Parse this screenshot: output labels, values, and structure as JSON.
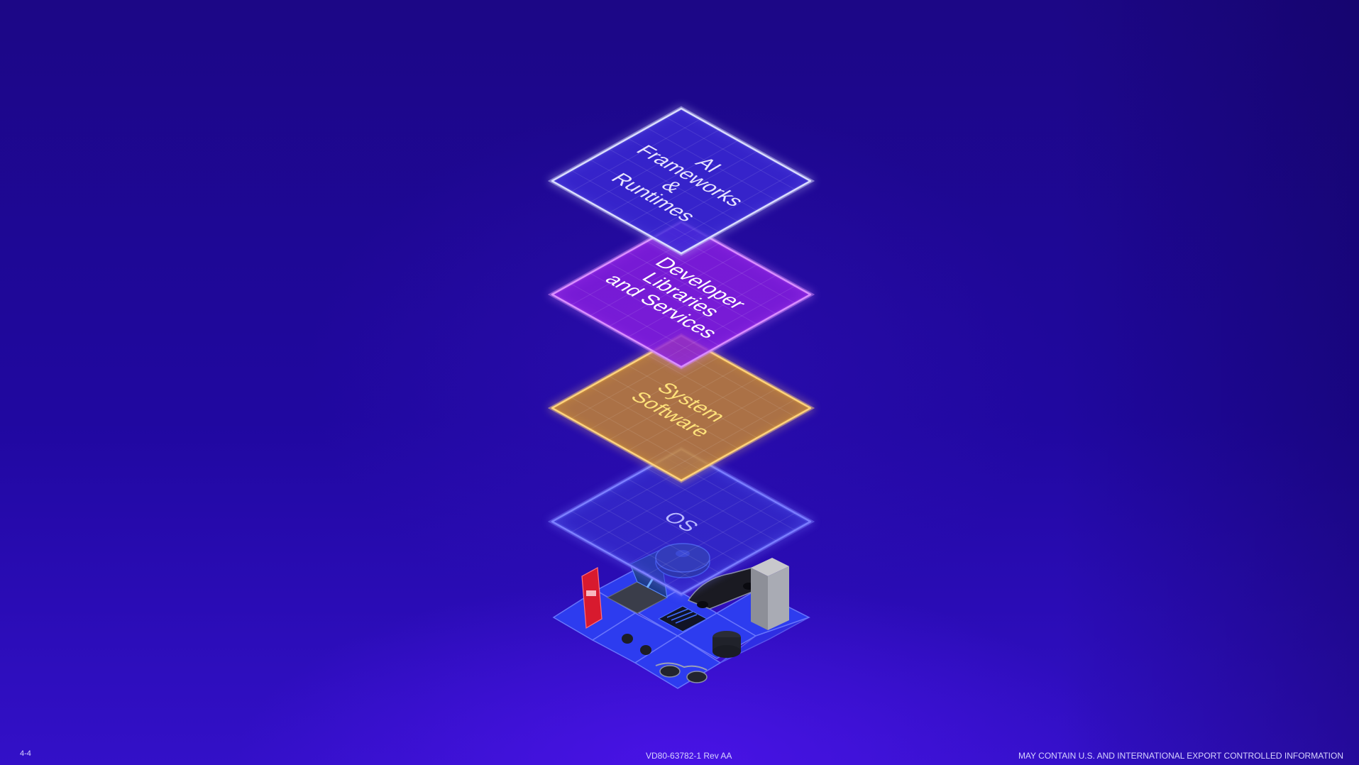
{
  "layers": [
    {
      "lines": [
        "AI",
        "Frameworks",
        "&",
        "Runtimes"
      ],
      "fill": "#3a2ad6",
      "edge": "#d9dcff",
      "text_color": "#e6e4ff"
    },
    {
      "lines": [
        "Developer",
        "Libraries",
        "and Services"
      ],
      "fill": "#8a1fe0",
      "edge": "#d98cff",
      "text_color": "#ffffff"
    },
    {
      "lines": [
        "System",
        "Software"
      ],
      "fill": "#c8872f",
      "edge": "#ffd27a",
      "text_color": "#ffe27a"
    },
    {
      "lines": [
        "OS"
      ],
      "fill": "#3b3ad9",
      "edge": "#7a7cff",
      "text_color": "#b9b8ff"
    }
  ],
  "devices_icon": "edge-devices-icon",
  "footer": {
    "page_number": "4-4",
    "document_id": "VD80-63782-1 Rev AA",
    "export_notice": "MAY CONTAIN U.S. AND INTERNATIONAL EXPORT CONTROLLED INFORMATION"
  }
}
